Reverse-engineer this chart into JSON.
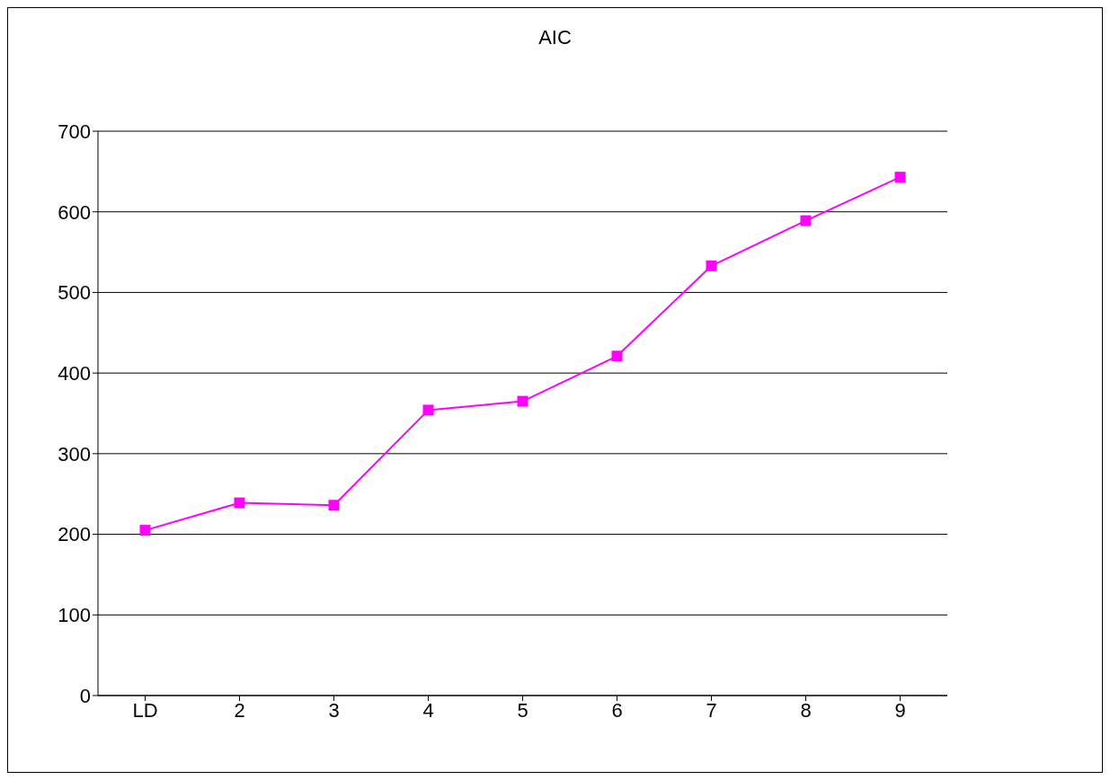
{
  "chart_data": {
    "type": "line",
    "title": "AIC",
    "categories": [
      "LD",
      "2",
      "3",
      "4",
      "5",
      "6",
      "7",
      "8",
      "9"
    ],
    "series": [
      {
        "color": "#ff00ff",
        "values": [
          205,
          239,
          236,
          354,
          365,
          421,
          533,
          589,
          643
        ]
      }
    ],
    "ylim": [
      0,
      700
    ],
    "yticks": [
      0,
      100,
      200,
      300,
      400,
      500,
      600,
      700
    ],
    "grid": "y",
    "legend": false,
    "marker": "square",
    "line_style": "solid"
  }
}
